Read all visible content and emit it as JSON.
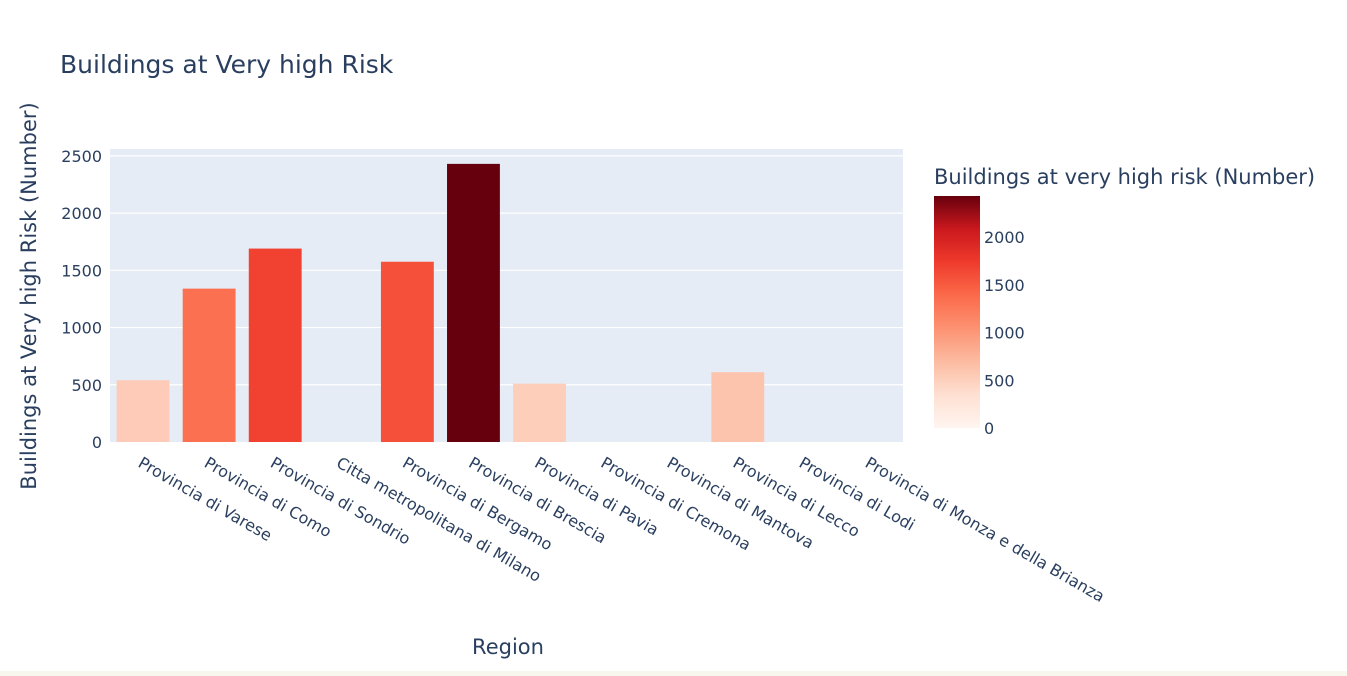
{
  "chart_data": {
    "type": "bar",
    "title": "Buildings at Very high Risk",
    "xlabel": "Region",
    "ylabel": "Buildings at Very high Risk (Number)",
    "categories": [
      "Provincia di Varese",
      "Provincia di Como",
      "Provincia di Sondrio",
      "Citta metropolitana di Milano",
      "Provincia di Bergamo",
      "Provincia di Brescia",
      "Provincia di Pavia",
      "Provincia di Cremona",
      "Provincia di Mantova",
      "Provincia di Lecco",
      "Provincia di Lodi",
      "Provincia di Monza e della Brianza"
    ],
    "values": [
      540,
      1340,
      1690,
      0,
      1575,
      2430,
      510,
      0,
      0,
      610,
      0,
      0
    ],
    "ylim": [
      0,
      2560
    ],
    "yticks": [
      0,
      500,
      1000,
      1500,
      2000,
      2500
    ],
    "grid": true,
    "colorbar": {
      "title": "Buildings at very high risk (Number)",
      "range": [
        0,
        2430
      ],
      "ticks": [
        0,
        500,
        1000,
        1500,
        2000
      ],
      "colorscale": [
        "#fff5f0",
        "#fee0d2",
        "#fcbba1",
        "#fc9272",
        "#fb6a4a",
        "#ef3b2c",
        "#cb181d",
        "#67000d"
      ]
    }
  }
}
